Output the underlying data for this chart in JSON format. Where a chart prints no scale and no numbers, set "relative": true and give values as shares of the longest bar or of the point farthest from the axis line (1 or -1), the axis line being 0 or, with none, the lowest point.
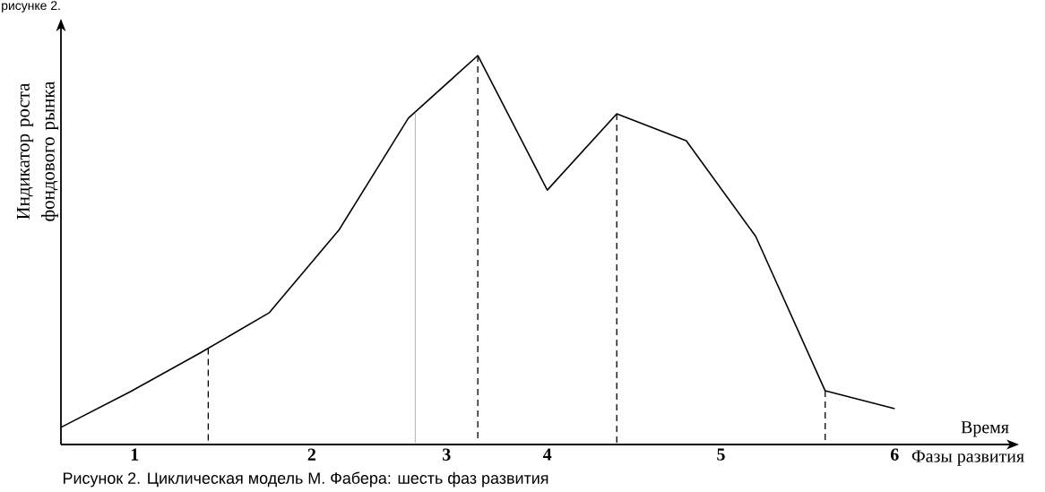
{
  "chart_data": {
    "type": "line",
    "relative": true,
    "color": "#000000",
    "xlabel": "Время",
    "ylabel": "Индикатор роста фондового рынка",
    "annotations": [
      "Фазы развития",
      "Рисунок 2. Циклическая модель М. Фабера: шесть фаз развития",
      "рисунке 2.",
      "1",
      "2",
      "3",
      "4",
      "5",
      "6"
    ],
    "categories": [
      null,
      null,
      null,
      null,
      null,
      null,
      null,
      null,
      null,
      null,
      null,
      null,
      null
    ],
    "values": [
      0.044,
      0.136,
      0.235,
      0.339,
      0.551,
      0.839,
      1,
      0.654,
      0.85,
      0.781,
      0.535,
      0.138,
      0.092
    ]
  }
}
